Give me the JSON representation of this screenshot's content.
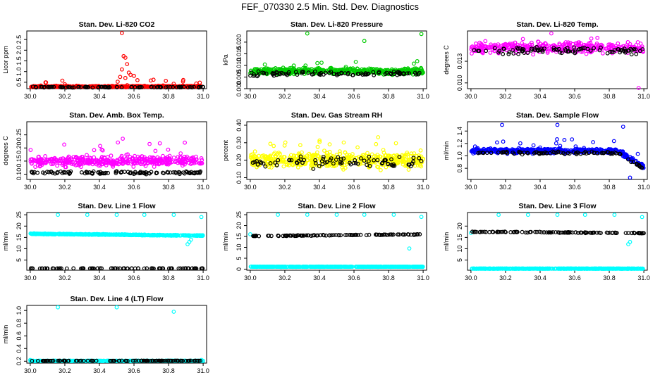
{
  "title": "FEF_070330  2.5 Min. Std. Dev. Diagnostics",
  "chart_data": [
    {
      "type": "scatter",
      "title": "Stan. Dev. Li-820 CO2",
      "ylabel": "Licor ppm",
      "xlim": [
        29.98,
        31.02
      ],
      "ylim": [
        0.2,
        2.9
      ],
      "xticks": [
        "30.0",
        "30.2",
        "30.4",
        "30.6",
        "30.8",
        "31.0"
      ],
      "yticks": [
        "0.5",
        "1.0",
        "1.5",
        "2.0",
        "2.5"
      ],
      "series": [
        {
          "name": "red",
          "color": "#ff0000",
          "base": 0.3,
          "noise": 0.06,
          "spikeRate": 0.05,
          "spikeMax": 0.35,
          "n": 420,
          "extra": [
            [
              30.53,
              2.8
            ],
            [
              30.54,
              1.72
            ],
            [
              30.55,
              1.65
            ],
            [
              30.56,
              1.35
            ],
            [
              30.53,
              1.1
            ],
            [
              30.57,
              0.95
            ],
            [
              30.58,
              0.85
            ],
            [
              30.6,
              0.8
            ],
            [
              30.55,
              0.7
            ],
            [
              30.52,
              0.75
            ],
            [
              30.62,
              0.6
            ]
          ]
        },
        {
          "name": "black",
          "color": "#000000",
          "base": 0.27,
          "noise": 0.03,
          "spikeRate": 0.02,
          "spikeMax": 0.1,
          "n": 90,
          "extra": []
        }
      ]
    },
    {
      "type": "scatter",
      "title": "Stan. Dev. Li-820 Pressure",
      "ylabel": "kPa",
      "xlim": [
        29.98,
        31.02
      ],
      "ylim": [
        0,
        0.0248
      ],
      "xticks": [
        "30.0",
        "30.2",
        "30.4",
        "30.6",
        "30.8",
        "31.0"
      ],
      "yticks": [
        "0.000",
        "0.005",
        "0.010",
        "0.015",
        "0.020"
      ],
      "series": [
        {
          "name": "green",
          "color": "#00cc00",
          "base": 0.0075,
          "noise": 0.0022,
          "spikeRate": 0.03,
          "spikeMax": 0.004,
          "n": 520,
          "extra": [
            [
              30.33,
              0.0237
            ],
            [
              30.66,
              0.0205
            ],
            [
              30.99,
              0.0235
            ]
          ]
        },
        {
          "name": "black",
          "color": "#000000",
          "base": 0.0065,
          "noise": 0.0015,
          "spikeRate": 0.0,
          "spikeMax": 0,
          "n": 90,
          "extra": []
        }
      ]
    },
    {
      "type": "scatter",
      "title": "Stan. Dev. Li-820 Temp.",
      "ylabel": "degrees C",
      "xlim": [
        29.98,
        31.02
      ],
      "ylim": [
        0.0092,
        0.0172
      ],
      "xticks": [
        "30.0",
        "30.2",
        "30.4",
        "30.6",
        "30.8",
        "31.0"
      ],
      "yticks": [
        "0.010",
        "0.013"
      ],
      "series": [
        {
          "name": "magenta",
          "color": "#ff00ff",
          "base": 0.0149,
          "noise": 0.0012,
          "spikeRate": 0.04,
          "spikeMax": 0.002,
          "n": 380,
          "extra": [
            [
              30.97,
              0.0093
            ]
          ]
        },
        {
          "name": "black",
          "color": "#000000",
          "base": 0.0145,
          "noise": 0.0009,
          "spikeRate": 0.0,
          "spikeMax": 0,
          "n": 90,
          "extra": []
        }
      ]
    },
    {
      "type": "scatter",
      "title": "Stan. Dev. Amb. Box Temp.",
      "ylabel": "degrees C",
      "xlim": [
        29.98,
        31.02
      ],
      "ylim": [
        0.08,
        0.3
      ],
      "xticks": [
        "30.0",
        "30.2",
        "30.4",
        "30.6",
        "30.8",
        "31.0"
      ],
      "yticks": [
        "0.10",
        "0.15",
        "0.20",
        "0.25"
      ],
      "series": [
        {
          "name": "magenta",
          "color": "#ff00ff",
          "base": 0.15,
          "noise": 0.03,
          "spikeRate": 0.05,
          "spikeMax": 0.08,
          "n": 460,
          "extra": []
        },
        {
          "name": "black",
          "color": "#000000",
          "base": 0.106,
          "noise": 0.008,
          "spikeRate": 0.0,
          "spikeMax": 0,
          "n": 110,
          "extra": []
        }
      ]
    },
    {
      "type": "scatter",
      "title": "Stan. Dev. Gas Stream RH",
      "ylabel": "percent",
      "xlim": [
        29.98,
        31.02
      ],
      "ylim": [
        0.09,
        0.42
      ],
      "xticks": [
        "30.0",
        "30.2",
        "30.4",
        "30.6",
        "30.8",
        "31.0"
      ],
      "yticks": [
        "0.10",
        "0.20",
        "0.30",
        "0.40"
      ],
      "series": [
        {
          "name": "yellow",
          "color": "#ffff00",
          "base": 0.2,
          "noise": 0.07,
          "spikeRate": 0.05,
          "spikeMax": 0.12,
          "n": 520,
          "extra": []
        },
        {
          "name": "black",
          "color": "#000000",
          "base": 0.19,
          "noise": 0.05,
          "spikeRate": 0.0,
          "spikeMax": 0,
          "n": 80,
          "extra": []
        }
      ]
    },
    {
      "type": "scatter",
      "title": "Stan. Dev. Sample Flow",
      "ylabel": "ml/min",
      "xlim": [
        29.98,
        31.02
      ],
      "ylim": [
        0.62,
        1.55
      ],
      "xticks": [
        "30.0",
        "30.2",
        "30.4",
        "30.6",
        "30.8",
        "31.0"
      ],
      "yticks": [
        "0.8",
        "1.0",
        "1.2",
        "1.4"
      ],
      "series": [
        {
          "name": "blue",
          "color": "#0000ff",
          "base": 1.08,
          "noise": 0.06,
          "spikeRate": 0.04,
          "spikeMax": 0.2,
          "n": 520,
          "drop": true,
          "extra": [
            [
              30.18,
              1.5
            ],
            [
              30.5,
              1.5
            ],
            [
              30.88,
              1.47
            ],
            [
              30.92,
              0.65
            ]
          ]
        },
        {
          "name": "black",
          "color": "#000000",
          "base": 1.05,
          "noise": 0.04,
          "spikeRate": 0.0,
          "spikeMax": 0,
          "n": 90,
          "drop": true,
          "extra": []
        }
      ]
    },
    {
      "type": "scatter",
      "title": "Stan. Dev. Line 1 Flow",
      "ylabel": "ml/min",
      "xlim": [
        29.98,
        31.02
      ],
      "ylim": [
        0.5,
        26
      ],
      "xticks": [
        "30.0",
        "30.2",
        "30.4",
        "30.6",
        "30.8",
        "31.0"
      ],
      "yticks": [
        "5",
        "10",
        "15",
        "20",
        "25"
      ],
      "series": [
        {
          "name": "cyan",
          "color": "#00ffff",
          "base": 16.2,
          "noise": 0.3,
          "spikeRate": 0.0,
          "spikeMax": 0,
          "n": 520,
          "slope": -0.8,
          "extra": [
            [
              30.16,
              25
            ],
            [
              30.33,
              25
            ],
            [
              30.5,
              25
            ],
            [
              30.66,
              25
            ],
            [
              30.83,
              25
            ],
            [
              30.99,
              24
            ],
            [
              30.91,
              12
            ],
            [
              30.92,
              13
            ],
            [
              30.93,
              14
            ]
          ]
        },
        {
          "name": "black",
          "color": "#000000",
          "base": 1.3,
          "noise": 0.08,
          "spikeRate": 0.0,
          "spikeMax": 0,
          "n": 90,
          "extra": []
        }
      ]
    },
    {
      "type": "scatter",
      "title": "Stan. Dev. Line 2 Flow",
      "ylabel": "ml/min",
      "xlim": [
        29.98,
        31.02
      ],
      "ylim": [
        -0.5,
        26
      ],
      "xticks": [
        "30.0",
        "30.2",
        "30.4",
        "30.6",
        "30.8",
        "31.0"
      ],
      "yticks": [
        "0",
        "5",
        "10",
        "15",
        "20",
        "25"
      ],
      "series": [
        {
          "name": "cyan",
          "color": "#00ffff",
          "base": 1.1,
          "noise": 0.12,
          "spikeRate": 0.0,
          "spikeMax": 0,
          "n": 520,
          "extra": [
            [
              30.0,
              16
            ],
            [
              30.16,
              25
            ],
            [
              30.33,
              25
            ],
            [
              30.5,
              25
            ],
            [
              30.66,
              25
            ],
            [
              30.83,
              25
            ],
            [
              30.99,
              24
            ],
            [
              30.92,
              9.5
            ]
          ]
        },
        {
          "name": "black",
          "color": "#000000",
          "base": 15.6,
          "noise": 0.3,
          "spikeRate": 0.0,
          "spikeMax": 0,
          "n": 110,
          "slope": 0.8,
          "extra": []
        }
      ]
    },
    {
      "type": "scatter",
      "title": "Stan. Dev. Line 3 Flow",
      "ylabel": "ml/min",
      "xlim": [
        29.98,
        31.02
      ],
      "ylim": [
        0.5,
        26
      ],
      "xticks": [
        "30.0",
        "30.2",
        "30.4",
        "30.6",
        "30.8",
        "31.0"
      ],
      "yticks": [
        "5",
        "10",
        "15",
        "20"
      ],
      "series": [
        {
          "name": "cyan",
          "color": "#00ffff",
          "base": 1.2,
          "noise": 0.1,
          "spikeRate": 0.0,
          "spikeMax": 0,
          "n": 520,
          "extra": [
            [
              30.0,
              17
            ],
            [
              30.16,
              25
            ],
            [
              30.33,
              25
            ],
            [
              30.5,
              25
            ],
            [
              30.66,
              25
            ],
            [
              30.83,
              25
            ],
            [
              30.99,
              24
            ],
            [
              30.91,
              12
            ],
            [
              30.92,
              13
            ]
          ]
        },
        {
          "name": "black",
          "color": "#000000",
          "base": 17.2,
          "noise": 0.3,
          "spikeRate": 0.0,
          "spikeMax": 0,
          "n": 110,
          "slope": -0.6,
          "extra": []
        }
      ]
    },
    {
      "type": "scatter",
      "title": "Stan. Dev. Line 4 (LT) Flow",
      "ylabel": "ml/min",
      "xlim": [
        29.98,
        31.02
      ],
      "ylim": [
        0.17,
        1.08
      ],
      "xticks": [
        "30.0",
        "30.2",
        "30.4",
        "30.6",
        "30.8",
        "31.0"
      ],
      "yticks": [
        "0.2",
        "0.4",
        "0.6",
        "0.8",
        "1.0"
      ],
      "series": [
        {
          "name": "cyan",
          "color": "#00ffff",
          "base": 0.205,
          "noise": 0.006,
          "spikeRate": 0.0,
          "spikeMax": 0,
          "n": 520,
          "extra": [
            [
              30.0,
              0.22
            ],
            [
              30.16,
              1.05
            ],
            [
              30.5,
              1.05
            ],
            [
              30.83,
              0.98
            ],
            [
              30.99,
              0.22
            ]
          ]
        },
        {
          "name": "black",
          "color": "#000000",
          "base": 0.206,
          "noise": 0.005,
          "spikeRate": 0.0,
          "spikeMax": 0,
          "n": 110,
          "extra": []
        }
      ]
    }
  ]
}
